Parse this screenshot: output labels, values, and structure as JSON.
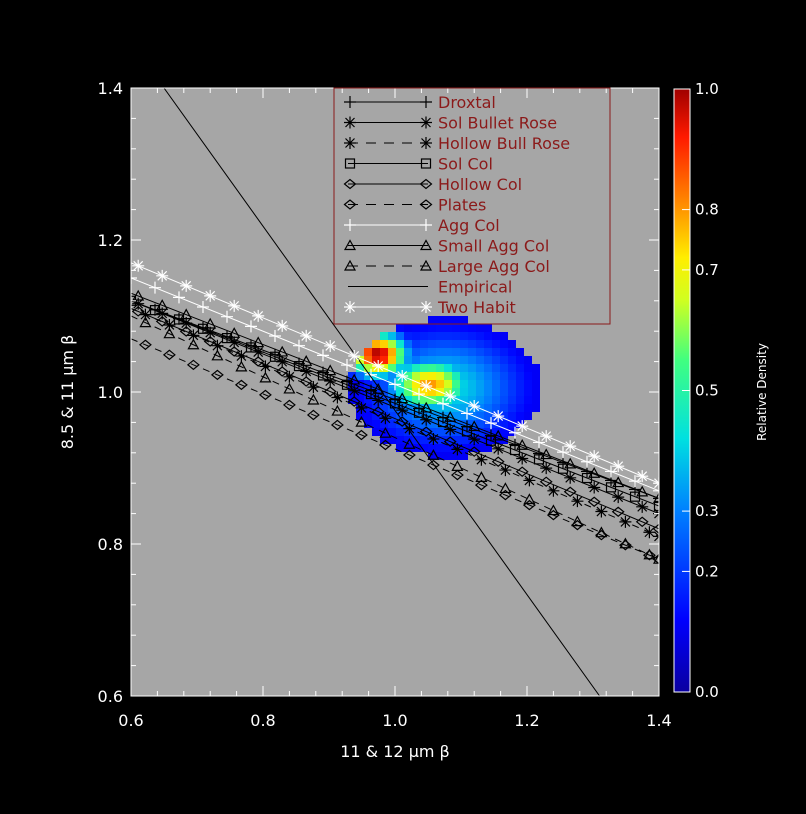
{
  "chart_data": {
    "type": "scatter",
    "xlabel": "11 & 12 μm β",
    "ylabel": "8.5 & 11 μm β",
    "xlim": [
      0.6,
      1.4
    ],
    "ylim": [
      0.6,
      1.4
    ],
    "x_ticks": [
      "0.6",
      "0.8",
      "1.0",
      "1.2",
      "1.4"
    ],
    "y_ticks": [
      "0.6",
      "0.8",
      "1.0",
      "1.2",
      "1.4"
    ],
    "grid": false,
    "legend_position": "top-center",
    "background_color": "#a6a6a6",
    "colorbar": {
      "title": "Relative Density",
      "ticks": [
        "0.0",
        "0.2",
        "0.3",
        "0.5",
        "0.7",
        "0.8",
        "1.0"
      ],
      "tick_values": [
        0.0,
        0.2,
        0.3,
        0.5,
        0.7,
        0.8,
        1.0
      ],
      "range": [
        0.0,
        1.0
      ]
    },
    "density": {
      "description_center": [
        1.0,
        1.03
      ],
      "peak_value": 1.0
    },
    "series": [
      {
        "name": "Droxtal",
        "marker": "plus",
        "dash": "solid",
        "color": "#000000",
        "x": [
          0.6,
          1.4
        ],
        "y": [
          1.12,
          0.86
        ]
      },
      {
        "name": "Sol Bullet Rose",
        "marker": "asterisk",
        "dash": "solid",
        "color": "#000000",
        "x": [
          0.6,
          1.4
        ],
        "y": [
          1.12,
          0.84
        ]
      },
      {
        "name": "Hollow Bull Rose",
        "marker": "asterisk",
        "dash": "dashed",
        "color": "#000000",
        "x": [
          0.6,
          1.4
        ],
        "y": [
          1.11,
          0.81
        ]
      },
      {
        "name": "Sol Col",
        "marker": "square",
        "dash": "solid",
        "color": "#000000",
        "x": [
          0.6,
          1.4
        ],
        "y": [
          1.12,
          0.85
        ]
      },
      {
        "name": "Hollow Col",
        "marker": "diamond",
        "dash": "solid",
        "color": "#000000",
        "x": [
          0.6,
          1.4
        ],
        "y": [
          1.11,
          0.82
        ]
      },
      {
        "name": "Plates",
        "marker": "diamond",
        "dash": "dashed",
        "color": "#000000",
        "x": [
          0.6,
          1.4
        ],
        "y": [
          1.07,
          0.78
        ]
      },
      {
        "name": "Agg Col",
        "marker": "plus",
        "dash": "solid",
        "color": "#ffffff",
        "x": [
          0.6,
          1.4
        ],
        "y": [
          1.15,
          0.87
        ]
      },
      {
        "name": "Small Agg Col",
        "marker": "triangle",
        "dash": "solid",
        "color": "#000000",
        "x": [
          0.6,
          1.4
        ],
        "y": [
          1.13,
          0.86
        ]
      },
      {
        "name": "Large Agg Col",
        "marker": "triangle",
        "dash": "dashed",
        "color": "#000000",
        "x": [
          0.6,
          1.4
        ],
        "y": [
          1.1,
          0.78
        ]
      },
      {
        "name": "Empirical",
        "marker": "none",
        "dash": "solid",
        "color": "#000000",
        "x": [
          0.65,
          1.31
        ],
        "y": [
          1.4,
          0.6
        ]
      },
      {
        "name": "Two Habit",
        "marker": "asterisk",
        "dash": "solid",
        "color": "#ffffff",
        "x": [
          0.6,
          1.4
        ],
        "y": [
          1.17,
          0.88
        ]
      }
    ]
  }
}
